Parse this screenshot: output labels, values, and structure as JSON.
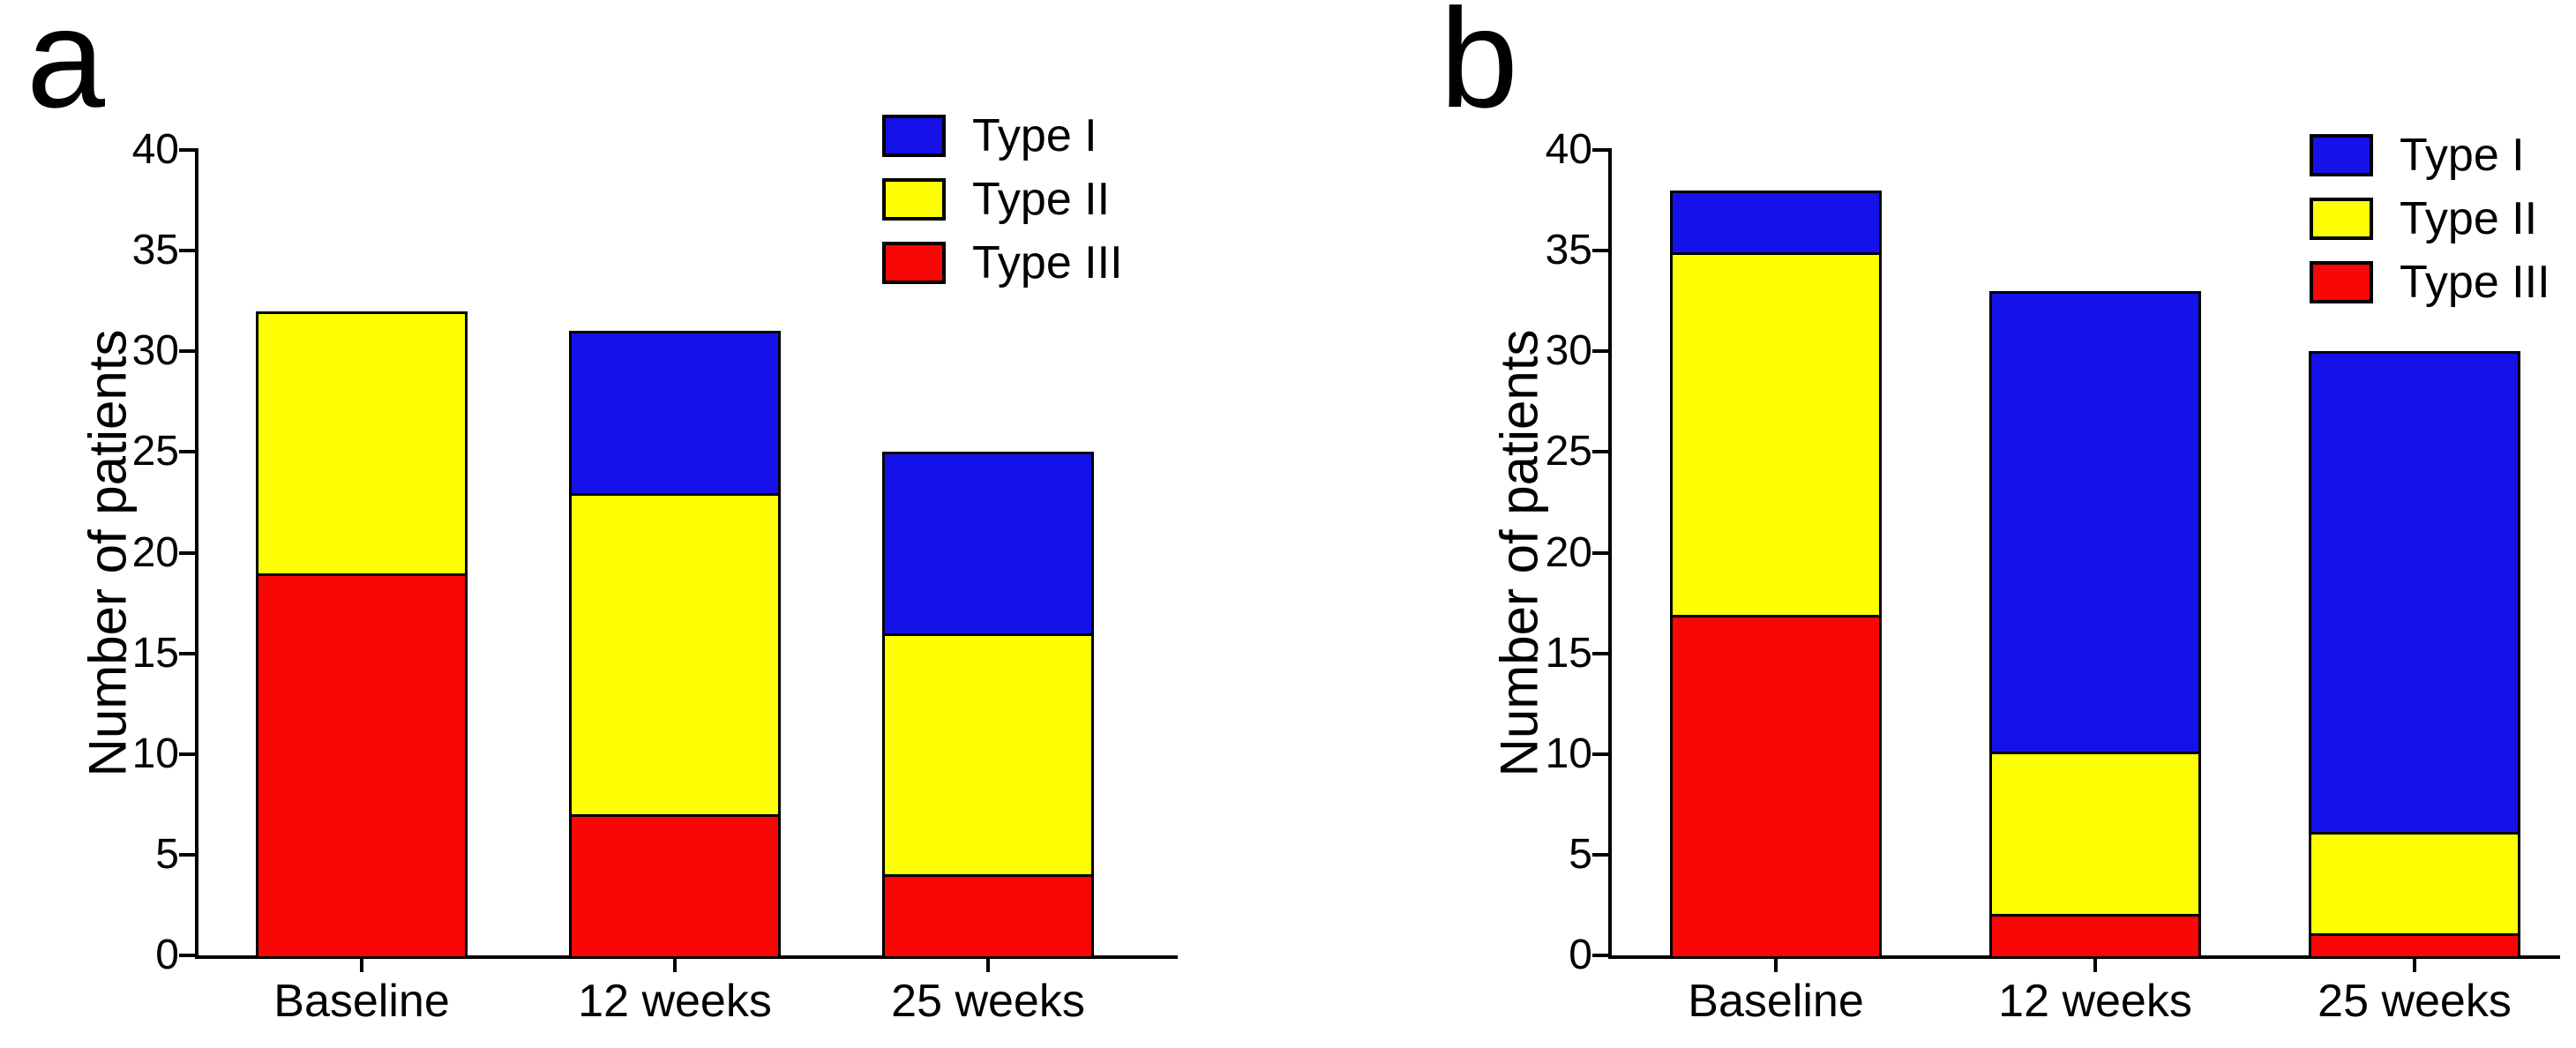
{
  "chart_data": [
    {
      "type": "bar",
      "stacked": true,
      "panel_label": "a",
      "categories": [
        "Baseline",
        "12 weeks",
        "25 weeks"
      ],
      "series": [
        {
          "name": "Type I",
          "color": "#1511e9",
          "values": [
            0,
            8,
            9
          ]
        },
        {
          "name": "Type II",
          "color": "#fefe05",
          "values": [
            13,
            16,
            12
          ]
        },
        {
          "name": "Type III",
          "color": "#f90606",
          "values": [
            19,
            7,
            4
          ]
        }
      ],
      "stack_order_bottom_to_top": [
        "Type III",
        "Type II",
        "Type I"
      ],
      "totals": [
        32,
        31,
        25
      ],
      "xlabel": "",
      "ylabel": "Number of patients",
      "ylim": [
        0,
        40
      ],
      "yticks": [
        0,
        5,
        10,
        15,
        20,
        25,
        30,
        35,
        40
      ],
      "legend_position": "top-right",
      "grid": false
    },
    {
      "type": "bar",
      "stacked": true,
      "panel_label": "b",
      "categories": [
        "Baseline",
        "12 weeks",
        "25 weeks"
      ],
      "series": [
        {
          "name": "Type I",
          "color": "#1511e9",
          "values": [
            3,
            23,
            24
          ]
        },
        {
          "name": "Type II",
          "color": "#fefe05",
          "values": [
            18,
            8,
            5
          ]
        },
        {
          "name": "Type III",
          "color": "#f90606",
          "values": [
            17,
            2,
            1
          ]
        }
      ],
      "stack_order_bottom_to_top": [
        "Type III",
        "Type II",
        "Type I"
      ],
      "totals": [
        38,
        33,
        30
      ],
      "xlabel": "",
      "ylabel": "Number of patients",
      "ylim": [
        0,
        40
      ],
      "yticks": [
        0,
        5,
        10,
        15,
        20,
        25,
        30,
        35,
        40
      ],
      "legend_position": "top-right",
      "grid": false
    }
  ],
  "colors": {
    "type_i_blue": "#1511e9",
    "type_ii_yellow": "#fefe05",
    "type_iii_red": "#f90606",
    "axis_black": "#000000",
    "background": "#ffffff"
  }
}
